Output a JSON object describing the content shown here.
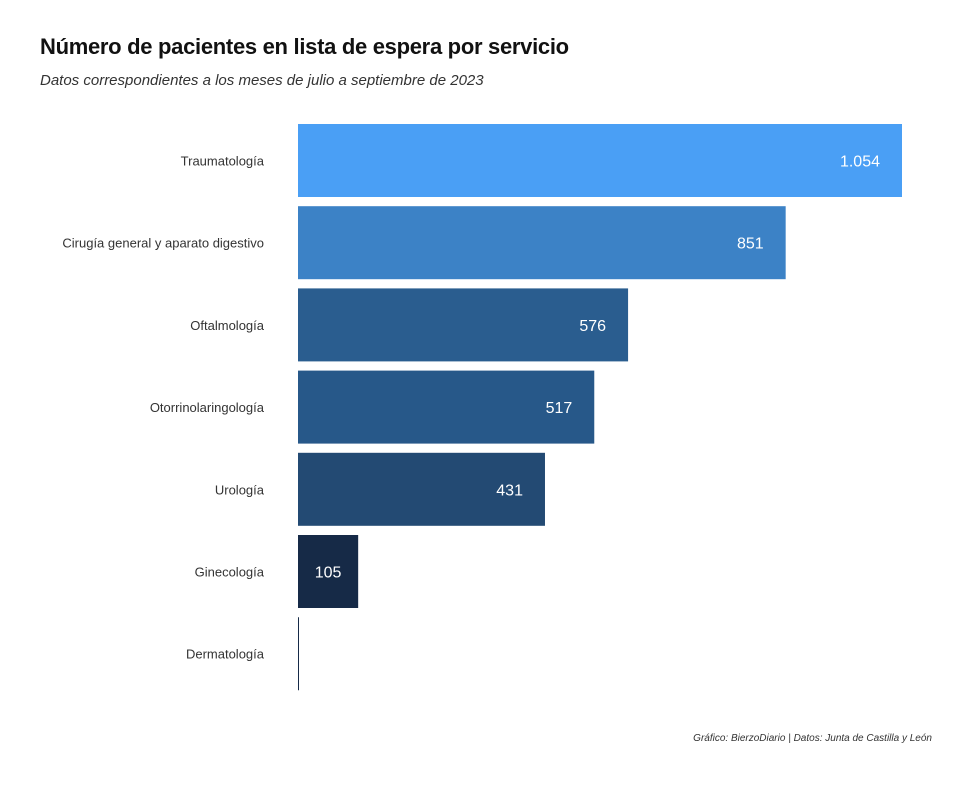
{
  "chart_data": {
    "type": "bar",
    "orientation": "horizontal",
    "title": "Número de pacientes en lista de espera por servicio",
    "subtitle": "Datos correspondientes a los meses de julio a septiembre de 2023",
    "caption": "Gráfico: BierzoDiario | Datos: Junta de Castilla y León",
    "categories": [
      "Traumatología",
      "Cirugía general y aparato digestivo",
      "Oftalmología",
      "Otorrinolaringología",
      "Urología",
      "Ginecología",
      "Dermatología"
    ],
    "values": [
      1054,
      851,
      576,
      517,
      431,
      105,
      0
    ],
    "value_labels": [
      "1.054",
      "851",
      "576",
      "517",
      "431",
      "105",
      ""
    ],
    "colors": [
      "#4a9ff5",
      "#3c82c6",
      "#2a5d8f",
      "#275889",
      "#234a73",
      "#162a47",
      "#162a47"
    ],
    "xlim": [
      0,
      1054
    ],
    "grid": false,
    "legend": "none"
  }
}
